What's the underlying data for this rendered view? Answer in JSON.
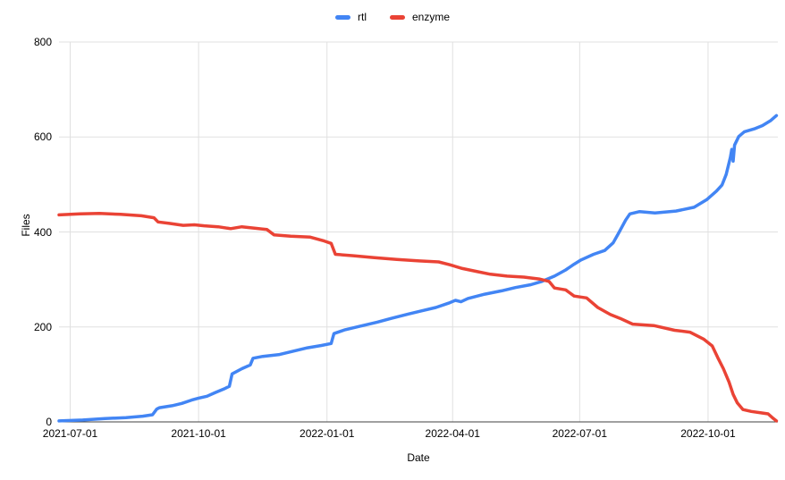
{
  "colors": {
    "rtl": "#4285f4",
    "enzyme": "#ea4335",
    "gridline": "#e0e0e0",
    "axis_line": "#424242",
    "text": "#000000",
    "background": "#ffffff"
  },
  "legend": {
    "items": [
      {
        "id": "rtl",
        "label": "rtl",
        "color": "#4285f4"
      },
      {
        "id": "enzyme",
        "label": "enzyme",
        "color": "#ea4335"
      }
    ]
  },
  "chart_data": {
    "type": "line",
    "title": "",
    "xlabel": "Date",
    "ylabel": "Files",
    "ylim": [
      0,
      800
    ],
    "y_ticks": [
      0,
      200,
      400,
      600,
      800
    ],
    "xlim": [
      "2021-06-23",
      "2022-11-20"
    ],
    "x_tick_labels": [
      "2021-07-01",
      "2021-10-01",
      "2022-01-01",
      "2022-04-01",
      "2022-07-01",
      "2022-10-01"
    ],
    "grid": true,
    "legend_position": "top-center",
    "series": [
      {
        "name": "rtl",
        "color": "#4285f4",
        "points": [
          [
            "2021-06-23",
            2
          ],
          [
            "2021-07-10",
            4
          ],
          [
            "2021-07-26",
            7
          ],
          [
            "2021-08-10",
            9
          ],
          [
            "2021-08-22",
            12
          ],
          [
            "2021-08-29",
            15
          ],
          [
            "2021-09-01",
            27
          ],
          [
            "2021-09-03",
            30
          ],
          [
            "2021-09-12",
            34
          ],
          [
            "2021-09-19",
            39
          ],
          [
            "2021-09-26",
            46
          ],
          [
            "2021-10-01",
            50
          ],
          [
            "2021-10-07",
            54
          ],
          [
            "2021-10-13",
            62
          ],
          [
            "2021-10-19",
            69
          ],
          [
            "2021-10-23",
            75
          ],
          [
            "2021-10-25",
            101
          ],
          [
            "2021-11-01",
            112
          ],
          [
            "2021-11-07",
            120
          ],
          [
            "2021-11-09",
            134
          ],
          [
            "2021-11-16",
            138
          ],
          [
            "2021-11-28",
            142
          ],
          [
            "2021-12-08",
            149
          ],
          [
            "2021-12-18",
            156
          ],
          [
            "2021-12-28",
            161
          ],
          [
            "2022-01-04",
            165
          ],
          [
            "2022-01-06",
            186
          ],
          [
            "2022-01-14",
            194
          ],
          [
            "2022-01-24",
            201
          ],
          [
            "2022-02-06",
            210
          ],
          [
            "2022-02-16",
            218
          ],
          [
            "2022-02-28",
            227
          ],
          [
            "2022-03-10",
            234
          ],
          [
            "2022-03-20",
            241
          ],
          [
            "2022-03-29",
            250
          ],
          [
            "2022-04-03",
            256
          ],
          [
            "2022-04-07",
            253
          ],
          [
            "2022-04-12",
            260
          ],
          [
            "2022-04-24",
            269
          ],
          [
            "2022-05-06",
            276
          ],
          [
            "2022-05-16",
            283
          ],
          [
            "2022-05-27",
            289
          ],
          [
            "2022-06-04",
            296
          ],
          [
            "2022-06-13",
            307
          ],
          [
            "2022-06-21",
            320
          ],
          [
            "2022-06-27",
            332
          ],
          [
            "2022-07-02",
            341
          ],
          [
            "2022-07-11",
            353
          ],
          [
            "2022-07-19",
            361
          ],
          [
            "2022-07-25",
            377
          ],
          [
            "2022-07-29",
            398
          ],
          [
            "2022-08-03",
            425
          ],
          [
            "2022-08-06",
            438
          ],
          [
            "2022-08-13",
            443
          ],
          [
            "2022-08-24",
            440
          ],
          [
            "2022-09-08",
            444
          ],
          [
            "2022-09-21",
            452
          ],
          [
            "2022-09-30",
            468
          ],
          [
            "2022-10-07",
            486
          ],
          [
            "2022-10-11",
            499
          ],
          [
            "2022-10-14",
            521
          ],
          [
            "2022-10-17",
            557
          ],
          [
            "2022-10-18",
            574
          ],
          [
            "2022-10-19",
            549
          ],
          [
            "2022-10-20",
            583
          ],
          [
            "2022-10-23",
            601
          ],
          [
            "2022-10-27",
            611
          ],
          [
            "2022-11-03",
            617
          ],
          [
            "2022-11-09",
            624
          ],
          [
            "2022-11-15",
            635
          ],
          [
            "2022-11-19",
            645
          ]
        ]
      },
      {
        "name": "enzyme",
        "color": "#ea4335",
        "points": [
          [
            "2021-06-23",
            436
          ],
          [
            "2021-07-08",
            438
          ],
          [
            "2021-07-22",
            439
          ],
          [
            "2021-08-06",
            437
          ],
          [
            "2021-08-21",
            434
          ],
          [
            "2021-08-30",
            430
          ],
          [
            "2021-09-02",
            421
          ],
          [
            "2021-09-10",
            418
          ],
          [
            "2021-09-20",
            414
          ],
          [
            "2021-09-28",
            415
          ],
          [
            "2021-10-05",
            413
          ],
          [
            "2021-10-15",
            411
          ],
          [
            "2021-10-24",
            407
          ],
          [
            "2021-11-01",
            411
          ],
          [
            "2021-11-10",
            408
          ],
          [
            "2021-11-19",
            405
          ],
          [
            "2021-11-24",
            394
          ],
          [
            "2021-12-06",
            391
          ],
          [
            "2021-12-20",
            389
          ],
          [
            "2021-12-30",
            381
          ],
          [
            "2022-01-04",
            376
          ],
          [
            "2022-01-07",
            353
          ],
          [
            "2022-01-20",
            350
          ],
          [
            "2022-02-04",
            346
          ],
          [
            "2022-02-20",
            342
          ],
          [
            "2022-03-08",
            339
          ],
          [
            "2022-03-22",
            337
          ],
          [
            "2022-03-30",
            331
          ],
          [
            "2022-04-08",
            323
          ],
          [
            "2022-04-18",
            317
          ],
          [
            "2022-04-28",
            311
          ],
          [
            "2022-05-10",
            307
          ],
          [
            "2022-05-22",
            305
          ],
          [
            "2022-06-02",
            301
          ],
          [
            "2022-06-09",
            296
          ],
          [
            "2022-06-13",
            282
          ],
          [
            "2022-06-21",
            278
          ],
          [
            "2022-06-27",
            265
          ],
          [
            "2022-07-06",
            261
          ],
          [
            "2022-07-14",
            241
          ],
          [
            "2022-07-23",
            226
          ],
          [
            "2022-07-30",
            218
          ],
          [
            "2022-08-08",
            206
          ],
          [
            "2022-08-23",
            203
          ],
          [
            "2022-09-07",
            193
          ],
          [
            "2022-09-18",
            189
          ],
          [
            "2022-09-28",
            174
          ],
          [
            "2022-10-04",
            160
          ],
          [
            "2022-10-08",
            135
          ],
          [
            "2022-10-12",
            112
          ],
          [
            "2022-10-16",
            84
          ],
          [
            "2022-10-19",
            58
          ],
          [
            "2022-10-22",
            40
          ],
          [
            "2022-10-26",
            26
          ],
          [
            "2022-11-01",
            22
          ],
          [
            "2022-11-08",
            19
          ],
          [
            "2022-11-13",
            17
          ],
          [
            "2022-11-16",
            9
          ],
          [
            "2022-11-19",
            2
          ]
        ]
      }
    ]
  }
}
